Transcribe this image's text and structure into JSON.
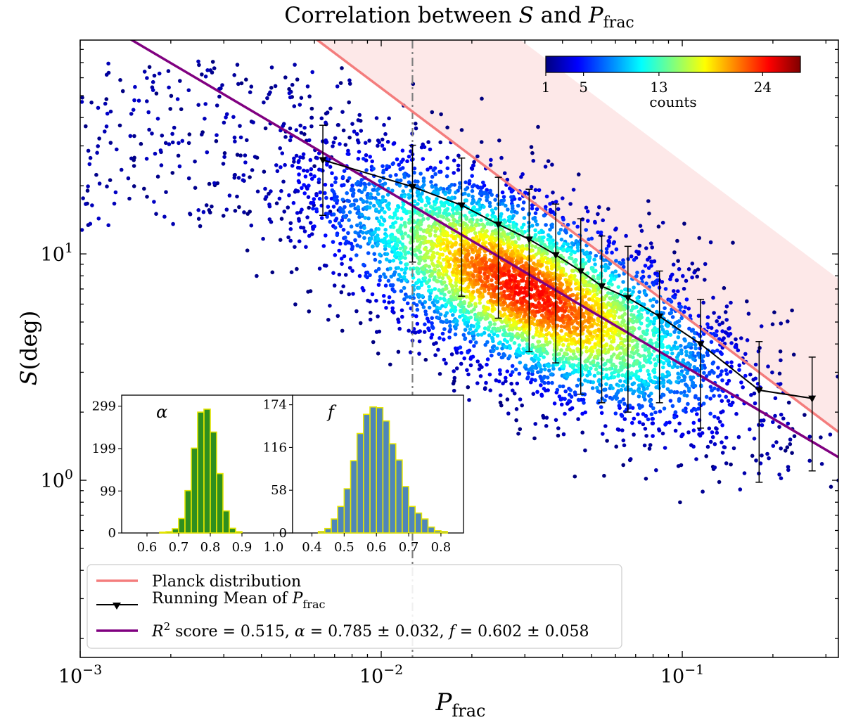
{
  "chart_data": {
    "type": "scatter",
    "title": {
      "prefix": "Correlation between ",
      "var1": "S",
      "middle": " and ",
      "var2": "P",
      "var2_sub": "frac"
    },
    "x_axis": {
      "label": "P",
      "label_sub": "frac",
      "scale": "log",
      "range": [
        0.001,
        0.33
      ],
      "ticks": [
        {
          "value": 0.001,
          "base": "10",
          "exp": "−3"
        },
        {
          "value": 0.01,
          "base": "10",
          "exp": "−2"
        },
        {
          "value": 0.1,
          "base": "10",
          "exp": "−1"
        }
      ]
    },
    "y_axis": {
      "label": "S",
      "label_unit": "(deg)",
      "scale": "log",
      "range": [
        0.165,
        88
      ],
      "ticks": [
        {
          "value": 1,
          "base": "10",
          "exp": "0"
        },
        {
          "value": 10,
          "base": "10",
          "exp": "1"
        }
      ]
    },
    "threshold_line": {
      "x": 0.0127,
      "style": "dash-dot",
      "color": "#808080"
    },
    "planck_line": {
      "coef": 0.54,
      "slope": -1.0,
      "color": "#f47d7d"
    },
    "planck_band": {
      "upper_coef": 2.56,
      "slope": -1.0,
      "color": "#fde8e8"
    },
    "fit_line": {
      "alpha": 0.785,
      "f": 0.602,
      "coef": 0.53,
      "color": "#800080"
    },
    "running_mean": {
      "color": "#000000",
      "points": [
        {
          "x": 0.0064,
          "y": 26.0,
          "low": 14.8,
          "high": 37.0
        },
        {
          "x": 0.0127,
          "y": 19.8,
          "low": 9.2,
          "high": 30.2
        },
        {
          "x": 0.0185,
          "y": 16.4,
          "low": 6.5,
          "high": 26.5
        },
        {
          "x": 0.0245,
          "y": 13.5,
          "low": 5.2,
          "high": 21.8
        },
        {
          "x": 0.031,
          "y": 11.6,
          "low": 3.7,
          "high": 19.3
        },
        {
          "x": 0.038,
          "y": 9.9,
          "low": 3.3,
          "high": 16.6
        },
        {
          "x": 0.046,
          "y": 8.4,
          "low": 2.4,
          "high": 14.3
        },
        {
          "x": 0.054,
          "y": 7.2,
          "low": 2.2,
          "high": 12.0
        },
        {
          "x": 0.066,
          "y": 6.4,
          "low": 2.0,
          "high": 10.8
        },
        {
          "x": 0.084,
          "y": 5.3,
          "low": 2.2,
          "high": 8.4
        },
        {
          "x": 0.115,
          "y": 4.0,
          "low": 1.7,
          "high": 6.3
        },
        {
          "x": 0.18,
          "y": 2.5,
          "low": 0.98,
          "high": 4.1
        },
        {
          "x": 0.27,
          "y": 2.3,
          "low": 1.1,
          "high": 3.5
        }
      ]
    },
    "scatter_cloud": {
      "center_logx": -1.52,
      "center_logy": 0.84,
      "sd_major": 0.42,
      "sd_minor": 0.17,
      "slope": -0.78,
      "count": 5200,
      "count_sd": 0.26,
      "count_peak": 24
    },
    "colorbar": {
      "label": "counts",
      "min": 1,
      "max": 28,
      "ticks": [
        {
          "value": 1,
          "label": "1"
        },
        {
          "value": 5,
          "label": "5"
        },
        {
          "value": 13,
          "label": "13"
        },
        {
          "value": 24,
          "label": "24"
        }
      ],
      "stops": [
        "#00007f",
        "#0000ff",
        "#007fff",
        "#00ffff",
        "#7fff7f",
        "#ffff00",
        "#ff7f00",
        "#ff0000",
        "#7f0000"
      ]
    },
    "inset_alpha": {
      "symbol": "α",
      "bar_color": "#2f8f1f",
      "edge_color": "#e6e600",
      "xlim": [
        0.52,
        1.06
      ],
      "xticks": [
        0.6,
        0.7,
        0.8,
        0.9,
        1.0
      ],
      "xtick_labels": [
        "0.6",
        "0.7",
        "0.8",
        "0.9",
        "1.0"
      ],
      "ytick_values": [
        0,
        99,
        199,
        299
      ],
      "ytick_labels": [
        "0",
        "99",
        "199",
        "299"
      ],
      "ymax": 325,
      "bins": [
        0.64,
        0.66,
        0.68,
        0.7,
        0.72,
        0.74,
        0.76,
        0.78,
        0.8,
        0.82,
        0.84,
        0.86,
        0.88,
        0.9
      ],
      "counts": [
        2,
        3,
        10,
        34,
        100,
        200,
        285,
        292,
        238,
        140,
        52,
        11,
        3
      ]
    },
    "inset_f": {
      "symbol": "f",
      "bar_color": "#4f86b8",
      "edge_color": "#e6e600",
      "xlim": [
        0.34,
        0.87
      ],
      "xticks": [
        0.4,
        0.5,
        0.6,
        0.7,
        0.8
      ],
      "xtick_labels": [
        "0.4",
        "0.5",
        "0.6",
        "0.7",
        "0.8"
      ],
      "ytick_values": [
        0,
        58,
        116,
        174
      ],
      "ytick_labels": [
        "0",
        "58",
        "116",
        "174"
      ],
      "ymax": 187,
      "bins": [
        0.42,
        0.44,
        0.46,
        0.48,
        0.5,
        0.52,
        0.54,
        0.56,
        0.58,
        0.6,
        0.62,
        0.64,
        0.66,
        0.68,
        0.7,
        0.72,
        0.74,
        0.76,
        0.78,
        0.8,
        0.82
      ],
      "counts": [
        2,
        6,
        19,
        36,
        60,
        98,
        135,
        161,
        171,
        170,
        152,
        121,
        99,
        63,
        36,
        27,
        19,
        8,
        3,
        2
      ]
    },
    "legend": {
      "planck_label": "Planck distribution",
      "running_label": "Running Mean of ",
      "running_var": "P",
      "running_sub": "frac",
      "fit_r2": "R",
      "fit_r2_sup": "2",
      "fit_score_text": " score = 0.515, ",
      "fit_alpha_sym": "α",
      "fit_alpha_text": " = 0.785 ± 0.032, ",
      "fit_f_sym": "f",
      "fit_f_text": " = 0.602 ± 0.058"
    }
  }
}
